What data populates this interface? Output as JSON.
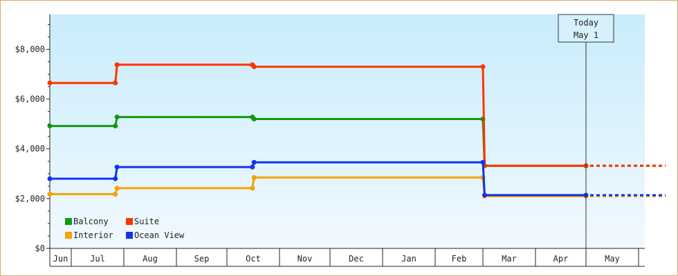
{
  "chart_data": {
    "type": "line",
    "step": true,
    "x_ticks": [
      "Jun",
      "Jul",
      "Aug",
      "Sep",
      "Oct",
      "Nov",
      "Dec",
      "Jan",
      "Feb",
      "Mar",
      "Apr",
      "May"
    ],
    "y_ticks": [
      "$0",
      "$2,000",
      "$4,000",
      "$6,000",
      "$8,000"
    ],
    "ylim": [
      0,
      9400
    ],
    "today_marker": {
      "line1": "Today",
      "line2": "May 1",
      "date": "May 1"
    },
    "legend_placement": "bottom-left",
    "legend": [
      {
        "label": "Balcony",
        "color": "#119911"
      },
      {
        "label": "Suite",
        "color": "#ff3300"
      },
      {
        "label": "Interior",
        "color": "#f5a200"
      },
      {
        "label": "Ocean View",
        "color": "#1133ee"
      }
    ],
    "series": [
      {
        "name": "Balcony",
        "color": "#119911",
        "points": [
          [
            "Jun 1",
            4920
          ],
          [
            "Jul 27",
            4920
          ],
          [
            "Jul 28",
            5280
          ],
          [
            "Oct 16",
            5280
          ],
          [
            "Oct 17",
            5200
          ],
          [
            "Mar 1",
            5200
          ],
          [
            "Mar 2",
            3320
          ],
          [
            "May 1",
            3320
          ]
        ]
      },
      {
        "name": "Suite",
        "color": "#ff3300",
        "points": [
          [
            "Jun 1",
            6650
          ],
          [
            "Jul 27",
            6650
          ],
          [
            "Jul 28",
            7380
          ],
          [
            "Oct 16",
            7380
          ],
          [
            "Oct 17",
            7300
          ],
          [
            "Mar 1",
            7300
          ],
          [
            "Mar 2",
            3320
          ],
          [
            "May 1",
            3320
          ]
        ]
      },
      {
        "name": "Interior",
        "color": "#f5a200",
        "points": [
          [
            "Jun 1",
            2180
          ],
          [
            "Jul 27",
            2180
          ],
          [
            "Jul 28",
            2420
          ],
          [
            "Oct 16",
            2420
          ],
          [
            "Oct 17",
            2850
          ],
          [
            "Mar 1",
            2850
          ],
          [
            "Mar 2",
            2100
          ],
          [
            "May 1",
            2100
          ]
        ]
      },
      {
        "name": "Ocean View",
        "color": "#1133ee",
        "points": [
          [
            "Jun 1",
            2800
          ],
          [
            "Jul 27",
            2800
          ],
          [
            "Jul 28",
            3270
          ],
          [
            "Oct 16",
            3270
          ],
          [
            "Oct 17",
            3460
          ],
          [
            "Mar 1",
            3460
          ],
          [
            "Mar 2",
            2140
          ],
          [
            "May 1",
            2140
          ]
        ]
      }
    ]
  }
}
